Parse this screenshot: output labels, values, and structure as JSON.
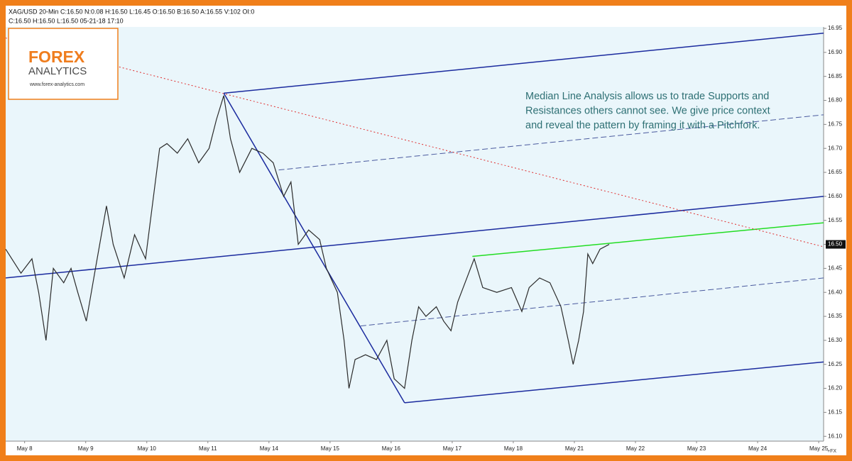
{
  "chart_data": {
    "type": "line",
    "title": "XAG/USD  20-Min  C:16.50  N:0.08  H:16.50  L:16.45  O:16.50  B:16.50  A:16.55  V:102  OI:0",
    "subtitle": "C:16.50  H:16.50  L:16.50  05-21-18  17:10",
    "annotation": [
      "Median Line Analysis allows us to trade Supports and",
      "Resistances others cannot see. We give price context",
      "and reveal the pattern by framing it with a Pitchfork."
    ],
    "corner_label": "+FX",
    "color": "#2b2b2b",
    "x": [
      -0.31,
      -0.06,
      0.12,
      0.23,
      0.35,
      0.47,
      0.64,
      0.76,
      0.87,
      1.01,
      1.16,
      1.34,
      1.45,
      1.63,
      1.8,
      1.98,
      2.09,
      2.21,
      2.33,
      2.5,
      2.67,
      2.85,
      3.02,
      3.14,
      3.26,
      3.37,
      3.52,
      3.72,
      3.9,
      4.07,
      4.24,
      4.36,
      4.48,
      4.65,
      4.83,
      4.94,
      5.12,
      5.23,
      5.31,
      5.41,
      5.58,
      5.76,
      5.93,
      6.05,
      6.22,
      6.34,
      6.45,
      6.57,
      6.74,
      6.86,
      6.98,
      7.09,
      7.27,
      7.36,
      7.5,
      7.73,
      7.97,
      8.14,
      8.26,
      8.43,
      8.6,
      8.78,
      8.9,
      8.98,
      9.07,
      9.15,
      9.22,
      9.3,
      9.42,
      9.57
    ],
    "values": [
      16.49,
      16.44,
      16.47,
      16.4,
      16.3,
      16.45,
      16.42,
      16.45,
      16.4,
      16.34,
      16.45,
      16.58,
      16.5,
      16.43,
      16.52,
      16.47,
      16.58,
      16.7,
      16.71,
      16.69,
      16.72,
      16.67,
      16.7,
      16.76,
      16.81,
      16.72,
      16.65,
      16.7,
      16.69,
      16.67,
      16.6,
      16.63,
      16.5,
      16.53,
      16.51,
      16.45,
      16.4,
      16.3,
      16.2,
      16.26,
      16.27,
      16.26,
      16.3,
      16.22,
      16.2,
      16.3,
      16.37,
      16.35,
      16.37,
      16.34,
      16.32,
      16.38,
      16.44,
      16.47,
      16.41,
      16.4,
      16.41,
      16.36,
      16.41,
      16.43,
      16.42,
      16.37,
      16.3,
      16.25,
      16.3,
      16.36,
      16.48,
      16.46,
      16.49,
      16.5
    ],
    "drawings": [
      {
        "color": "#1a2a9e",
        "dash": false,
        "x": [
          3.26,
          13.08
        ],
        "y": [
          16.815,
          16.94
        ]
      },
      {
        "color": "#1a2a9e",
        "dash": false,
        "x": [
          -0.31,
          13.08
        ],
        "y": [
          16.43,
          16.6
        ]
      },
      {
        "color": "#1a2a9e",
        "dash": false,
        "x": [
          6.22,
          13.08
        ],
        "y": [
          16.17,
          16.255
        ]
      },
      {
        "color": "#1a2a9e",
        "dash": false,
        "x": [
          3.26,
          6.22
        ],
        "y": [
          16.815,
          16.17
        ]
      },
      {
        "color": "#4a5a9e",
        "dash": true,
        "x": [
          4.16,
          13.08
        ],
        "y": [
          16.655,
          16.77
        ]
      },
      {
        "color": "#4a5a9e",
        "dash": true,
        "x": [
          5.5,
          13.08
        ],
        "y": [
          16.33,
          16.43
        ]
      },
      {
        "color": "#22dd22",
        "dash": false,
        "x": [
          7.33,
          13.08
        ],
        "y": [
          16.475,
          16.545
        ]
      },
      {
        "color": "#e03030",
        "dash": true,
        "x": [
          -0.31,
          13.08
        ],
        "y": [
          16.93,
          16.495
        ]
      }
    ],
    "last_price": {
      "value": 16.5,
      "label": "16.50"
    },
    "xlim": [
      -0.31,
      13.08
    ],
    "ylim": [
      16.09,
      16.953
    ],
    "xticks": [
      {
        "value": 0,
        "label": "May 8"
      },
      {
        "value": 1,
        "label": "May 9"
      },
      {
        "value": 2,
        "label": "May 10"
      },
      {
        "value": 3,
        "label": "May 11"
      },
      {
        "value": 4,
        "label": "May 14"
      },
      {
        "value": 5,
        "label": "May 15"
      },
      {
        "value": 6,
        "label": "May 16"
      },
      {
        "value": 7,
        "label": "May 17"
      },
      {
        "value": 8,
        "label": "May 18"
      },
      {
        "value": 9,
        "label": "May 21"
      },
      {
        "value": 10,
        "label": "May 22"
      },
      {
        "value": 11,
        "label": "May 23"
      },
      {
        "value": 12,
        "label": "May 24"
      },
      {
        "value": 13,
        "label": "May 25"
      }
    ],
    "yticks": [
      {
        "value": 16.1,
        "label": "16.10"
      },
      16.15,
      {
        "value": 16.2,
        "label": "16.20"
      },
      16.25,
      {
        "value": 16.3,
        "label": "16.30"
      },
      16.35,
      {
        "value": 16.4,
        "label": "16.40"
      },
      16.45,
      {
        "value": 16.5,
        "label": "16.50"
      },
      16.55,
      {
        "value": 16.6,
        "label": "16.60"
      },
      16.65,
      {
        "value": 16.7,
        "label": "16.70"
      },
      16.75,
      {
        "value": 16.8,
        "label": "16.80"
      },
      16.85,
      {
        "value": 16.9,
        "label": "16.90"
      },
      16.95
    ]
  },
  "logo": {
    "brand": "FOREX",
    "sub": "ANALYTICS",
    "url": "www.forex-analytics.com"
  }
}
